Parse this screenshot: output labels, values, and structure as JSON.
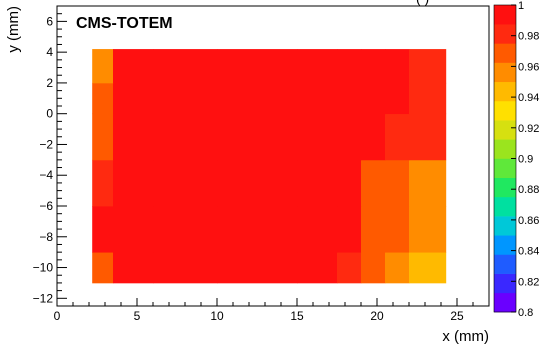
{
  "chart_data": {
    "type": "heatmap",
    "title": "CMS-TOTEM",
    "top_label_partial": "(    )",
    "xlabel": "x (mm)",
    "ylabel": "y (mm)",
    "xlim": [
      0,
      27
    ],
    "ylim": [
      -12.5,
      7
    ],
    "xticks": [
      0,
      5,
      10,
      15,
      20,
      25
    ],
    "yticks": [
      -12,
      -10,
      -8,
      -6,
      -4,
      -2,
      0,
      2,
      4,
      6
    ],
    "zlim": [
      0.8,
      1.0
    ],
    "zticks": [
      0.8,
      0.82,
      0.84,
      0.86,
      0.88,
      0.9,
      0.92,
      0.94,
      0.96,
      0.98,
      1
    ],
    "palette": [
      "#6a00ff",
      "#3a28ff",
      "#1f5cff",
      "#0096ff",
      "#00c8d8",
      "#00e0a0",
      "#20e860",
      "#5fe83a",
      "#9be41e",
      "#d6e010",
      "#ffe000",
      "#ffba00",
      "#ff8c00",
      "#ff5a00",
      "#ff2a10",
      "#ff1010"
    ],
    "filled_region": {
      "x": [
        2.2,
        24.3
      ],
      "y": [
        -11.0,
        4.2
      ]
    },
    "description_grid": {
      "x_edges": [
        2.2,
        3.5,
        6,
        10,
        15,
        17.5,
        19,
        20.5,
        22,
        24.3
      ],
      "y_edges": [
        -11.0,
        -9,
        -6,
        -3,
        0,
        2,
        4.2
      ],
      "values": [
        [
          0.975,
          1.0,
          1.0,
          1.0,
          0.998,
          0.985,
          0.965,
          0.955,
          0.94
        ],
        [
          0.99,
          1.0,
          1.0,
          1.0,
          1.0,
          0.99,
          0.975,
          0.965,
          0.955
        ],
        [
          0.98,
          1.0,
          1.0,
          1.0,
          1.0,
          0.992,
          0.975,
          0.965,
          0.96
        ],
        [
          0.965,
          1.0,
          1.0,
          1.0,
          1.0,
          0.997,
          0.99,
          0.985,
          0.98
        ],
        [
          0.975,
          1.0,
          1.0,
          1.0,
          1.0,
          0.998,
          0.995,
          0.99,
          0.985
        ],
        [
          0.955,
          1.0,
          1.0,
          1.0,
          1.0,
          0.998,
          0.995,
          0.99,
          0.985
        ]
      ]
    }
  }
}
